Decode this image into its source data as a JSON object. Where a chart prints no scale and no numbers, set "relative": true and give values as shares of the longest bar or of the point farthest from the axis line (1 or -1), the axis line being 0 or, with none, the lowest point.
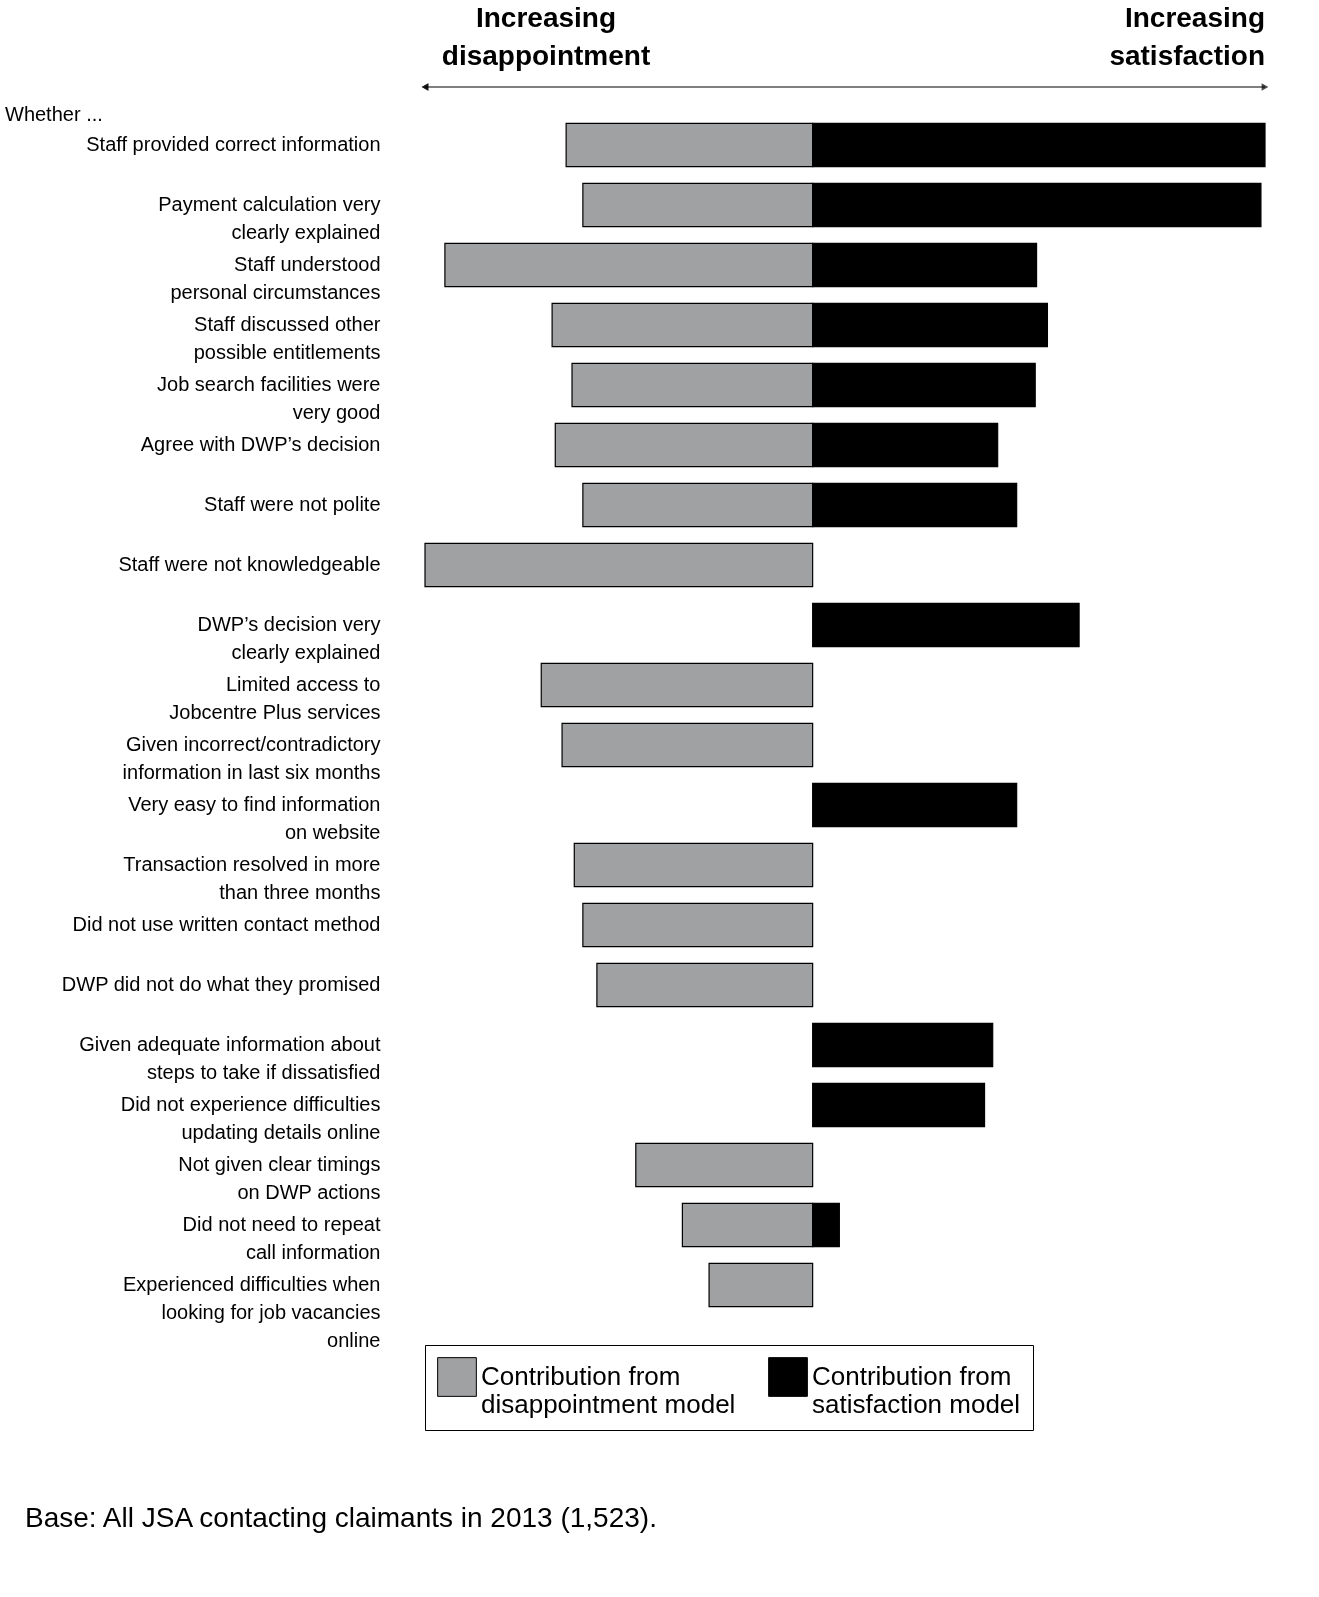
{
  "chart_data": {
    "type": "bar",
    "orientation": "horizontal",
    "relative": true,
    "legend": "bottom",
    "categories": [
      "Staff provided correct information",
      "Payment calculation very\nclearly explained",
      "Staff understood\npersonal circumstances",
      "Staff discussed other\npossible entitlements",
      "Job search facilities were\nvery good",
      "Agree with DWP’s decision",
      "Staff were not polite",
      "Staff were not knowledgeable",
      "DWP’s decision very\nclearly explained",
      "Limited access to\nJobcentre Plus services",
      "Given incorrect/contradictory\ninformation in last six months",
      "Very easy to find information\non website",
      "Transaction resolved in more\nthan three months",
      "Did not use written contact method",
      "DWP did not do what they promised",
      "Given adequate information about\nsteps to take if dissatisfied",
      "Did not experience difficulties\nupdating details online",
      "Not given clear timings\non DWP actions",
      "Did not need to repeat\ncall information",
      "Experienced difficulties when\nlooking for job vacancies\nonline"
    ],
    "series": [
      {
        "name": "Contribution from\ndisappointment model",
        "color": "#a0a1a3",
        "values": [
          -0.545,
          -0.508,
          -0.813,
          -0.576,
          -0.532,
          -0.569,
          -0.508,
          -0.857,
          null,
          -0.6,
          -0.554,
          null,
          -0.527,
          -0.508,
          -0.477,
          null,
          null,
          -0.391,
          -0.288,
          -0.229
        ]
      },
      {
        "name": "Contribution from\nsatisfaction model",
        "color": "#000000",
        "values": [
          1,
          0.991,
          0.495,
          0.519,
          0.492,
          0.409,
          0.451,
          null,
          0.589,
          null,
          null,
          0.451,
          null,
          null,
          null,
          0.398,
          0.38,
          null,
          0.059,
          null
        ]
      }
    ],
    "annotations": [
      "Increasing\ndisappointment",
      "Increasing\nsatisfaction",
      "Whether ...",
      "Base: All JSA contacting claimants in 2013 (1,523)."
    ]
  }
}
